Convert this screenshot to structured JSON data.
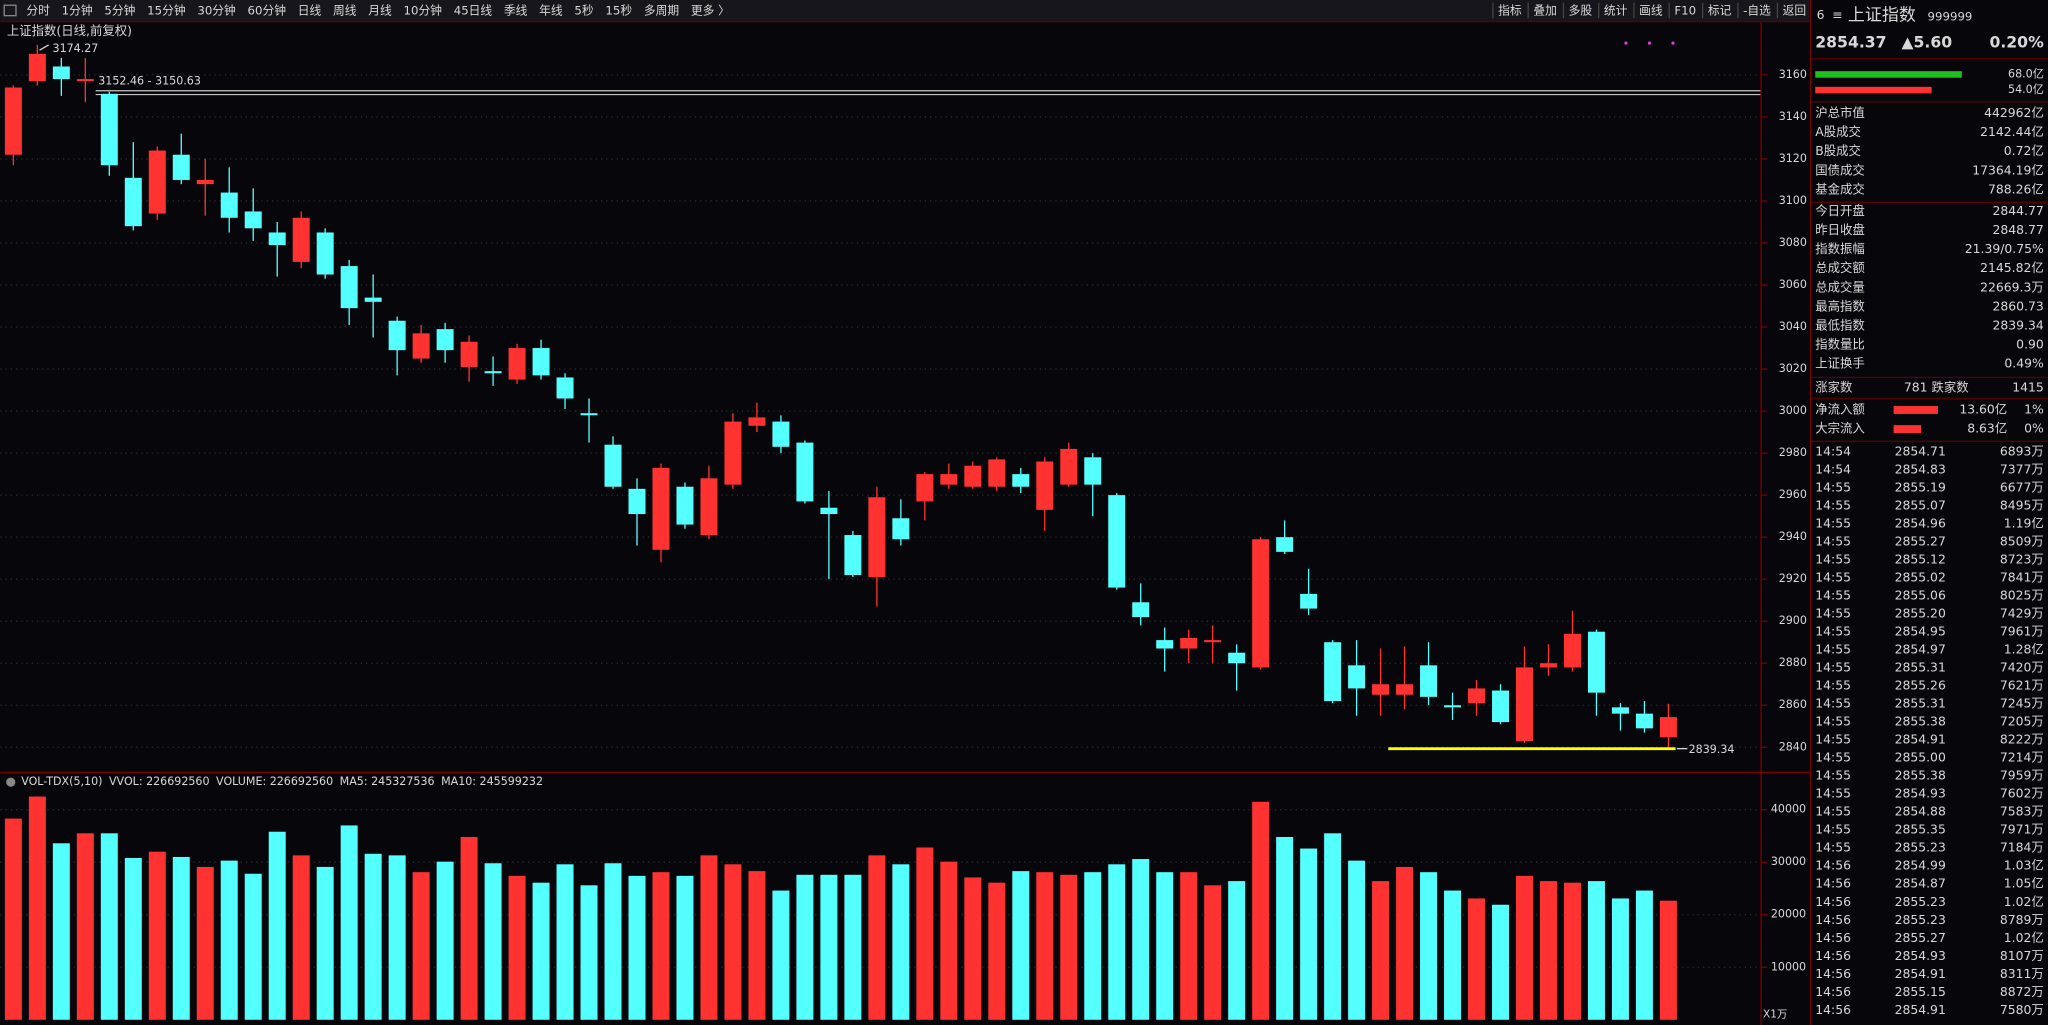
{
  "toolbar": {
    "periods": [
      "分时",
      "1分钟",
      "5分钟",
      "15分钟",
      "30分钟",
      "60分钟",
      "日线",
      "周线",
      "月线",
      "10分钟",
      "45日线",
      "季线",
      "年线",
      "5秒",
      "15秒",
      "多周期",
      "更多 〉"
    ],
    "active": 6,
    "tools": [
      "指标",
      "叠加",
      "多股",
      "统计",
      "画线",
      "F10",
      "标记",
      "-自选",
      "返回"
    ]
  },
  "kline": {
    "title": "上证指数(日线,前复权)",
    "up_color": "#ff3232",
    "down_color": "#54ffff",
    "ylim": [
      2829,
      3177
    ],
    "yticks": [
      2840,
      2860,
      2880,
      2900,
      2920,
      2940,
      2960,
      2980,
      3000,
      3020,
      3040,
      3060,
      3080,
      3100,
      3120,
      3140,
      3160
    ],
    "grid": true,
    "high_mark": 3174.27,
    "range_line": {
      "label": "3152.46 - 3150.63",
      "top": 3152.46,
      "bottom": 3150.63
    },
    "low_mark": 2839.34,
    "ohlc": [
      [
        3122,
        3155,
        3117,
        3154
      ],
      [
        3157,
        3174.27,
        3155,
        3170
      ],
      [
        3164,
        3168,
        3150,
        3158
      ],
      [
        3157,
        3168,
        3147,
        3158
      ],
      [
        3151,
        3152,
        3112,
        3117
      ],
      [
        3111,
        3128,
        3086,
        3088
      ],
      [
        3094,
        3126,
        3091,
        3124
      ],
      [
        3122,
        3132,
        3108,
        3110
      ],
      [
        3108,
        3120,
        3093,
        3110
      ],
      [
        3104,
        3116,
        3085,
        3092
      ],
      [
        3095,
        3106,
        3081,
        3087
      ],
      [
        3085,
        3090,
        3064,
        3079
      ],
      [
        3071,
        3095,
        3068,
        3092
      ],
      [
        3085,
        3087,
        3063,
        3065
      ],
      [
        3069,
        3072,
        3041,
        3049
      ],
      [
        3054,
        3065,
        3035,
        3052
      ],
      [
        3043,
        3045,
        3017,
        3029
      ],
      [
        3025,
        3041,
        3023,
        3037
      ],
      [
        3039,
        3042,
        3023,
        3029
      ],
      [
        3021,
        3036,
        3014,
        3033
      ],
      [
        3019,
        3026,
        3012,
        3018
      ],
      [
        3015,
        3032,
        3013,
        3030
      ],
      [
        3030,
        3034,
        3015,
        3017
      ],
      [
        3016,
        3018,
        3001,
        3006
      ],
      [
        2999,
        3006,
        2985,
        2998
      ],
      [
        2984,
        2988,
        2963,
        2964
      ],
      [
        2963,
        2968,
        2936,
        2951
      ],
      [
        2934,
        2975,
        2928,
        2973
      ],
      [
        2964,
        2966,
        2944,
        2946
      ],
      [
        2941,
        2974,
        2939,
        2968
      ],
      [
        2965,
        2999,
        2963,
        2995
      ],
      [
        2993,
        3004,
        2990,
        2997
      ],
      [
        2995,
        2998,
        2980,
        2983
      ],
      [
        2985,
        2986,
        2956,
        2957
      ],
      [
        2954,
        2962,
        2920,
        2951
      ],
      [
        2941,
        2943,
        2921,
        2922
      ],
      [
        2921,
        2964,
        2907,
        2959
      ],
      [
        2949,
        2958,
        2936,
        2939
      ],
      [
        2957,
        2971,
        2948,
        2970
      ],
      [
        2965,
        2975,
        2963,
        2970
      ],
      [
        2964,
        2976,
        2963,
        2974
      ],
      [
        2964,
        2978,
        2962,
        2977
      ],
      [
        2970,
        2973,
        2961,
        2964
      ],
      [
        2953,
        2978,
        2943,
        2976
      ],
      [
        2965,
        2985,
        2964,
        2982
      ],
      [
        2978,
        2980,
        2950,
        2965
      ],
      [
        2960,
        2961,
        2915,
        2916
      ],
      [
        2909,
        2918,
        2898,
        2902
      ],
      [
        2891,
        2897,
        2876,
        2887
      ],
      [
        2887,
        2896,
        2880,
        2892
      ],
      [
        2890,
        2898,
        2880,
        2891
      ],
      [
        2885,
        2889,
        2867,
        2880
      ],
      [
        2878,
        2940,
        2877,
        2939
      ],
      [
        2940,
        2948,
        2932,
        2933
      ],
      [
        2913,
        2925,
        2903,
        2906
      ],
      [
        2890,
        2891,
        2861,
        2862
      ],
      [
        2879,
        2891,
        2855,
        2868
      ],
      [
        2865,
        2887,
        2855,
        2870
      ],
      [
        2865,
        2888,
        2858,
        2870
      ],
      [
        2879,
        2890,
        2860,
        2864
      ],
      [
        2860,
        2866,
        2853,
        2859
      ],
      [
        2861,
        2872,
        2855,
        2868
      ],
      [
        2867,
        2870,
        2851,
        2852
      ],
      [
        2843,
        2888,
        2842,
        2878
      ],
      [
        2878,
        2889,
        2874,
        2880
      ],
      [
        2878,
        2905,
        2876,
        2894
      ],
      [
        2895,
        2896,
        2855,
        2866
      ],
      [
        2859,
        2861,
        2848,
        2856
      ],
      [
        2856,
        2862,
        2847,
        2849
      ],
      [
        2844.77,
        2860.73,
        2839.34,
        2854.37
      ]
    ]
  },
  "volume": {
    "legend": [
      "VOL-TDX(5,10)",
      "VVOL: 226692560",
      "VOLUME: 226692560",
      "MA5: 245327536",
      "MA10: 245599232"
    ],
    "legend_colors": [
      "#d8d8d8",
      "#d8d8d8",
      "#e8d000",
      "#e8d000",
      "#e040e0"
    ],
    "unit": "X1万",
    "ylim": [
      0,
      44000
    ],
    "yticks": [
      10000,
      20000,
      30000,
      40000
    ],
    "values": [
      38300,
      42500,
      33600,
      35500,
      35500,
      30800,
      32000,
      31000,
      29100,
      30300,
      27800,
      35800,
      31300,
      29100,
      37000,
      31600,
      31300,
      28100,
      30100,
      34800,
      29800,
      27400,
      26100,
      29600,
      25600,
      29800,
      27400,
      28100,
      27400,
      31300,
      29600,
      28300,
      24600,
      27600,
      27600,
      27600,
      31300,
      29600,
      32800,
      30100,
      27100,
      26100,
      28300,
      28100,
      27600,
      28100,
      29600,
      30600,
      28100,
      28100,
      25600,
      26400,
      41500,
      34800,
      32600,
      35500,
      30300,
      26400,
      29100,
      28100,
      24600,
      23100,
      21900,
      27400,
      26400,
      26100,
      26400,
      23100,
      24600,
      22669
    ]
  },
  "quote": {
    "num": "6",
    "menu": "≡",
    "name": "上证指数",
    "code": "999999",
    "price": "2854.37",
    "change": "▲5.60",
    "pct": "0.20%",
    "bars": [
      {
        "value": 68.0,
        "label": "68.0亿",
        "color": "#20c020"
      },
      {
        "value": 54.0,
        "label": "54.0亿",
        "color": "#ff3232"
      }
    ],
    "stats": [
      {
        "label": "沪总市值",
        "value": "442962亿",
        "color": "#e0e0e0"
      },
      {
        "label": "A股成交",
        "value": "2142.44亿",
        "color": "#e8d000"
      },
      {
        "label": "B股成交",
        "value": "0.72亿",
        "color": "#e8d000"
      },
      {
        "label": "国债成交",
        "value": "17364.19亿",
        "color": "#e8d000"
      },
      {
        "label": "基金成交",
        "value": "788.26亿",
        "color": "#e8d000"
      },
      {
        "label": "今日开盘",
        "value": "2844.77",
        "color": "#20e020"
      },
      {
        "label": "昨日收盘",
        "value": "2848.77",
        "color": "#e0e0e0"
      },
      {
        "label": "指数振幅",
        "value": "21.39/0.75%",
        "color": "#e0e0e0"
      },
      {
        "label": "总成交额",
        "value": "2145.82亿",
        "color": "#e8d000"
      },
      {
        "label": "总成交量",
        "value": "22669.3万",
        "color": "#e8d000"
      },
      {
        "label": "最高指数",
        "value": "2860.73",
        "color": "#ff3232"
      },
      {
        "label": "最低指数",
        "value": "2839.34",
        "color": "#20e020"
      },
      {
        "label": "指数量比",
        "value": "0.90",
        "color": "#20e020"
      },
      {
        "label": "上证换手",
        "value": "0.49%",
        "color": "#e0e0e0"
      }
    ],
    "breadth": {
      "up_label": "涨家数",
      "up": "781",
      "down_label": "跌家数",
      "down": "1415"
    },
    "flows": [
      {
        "label": "净流入额",
        "bar": 34,
        "value": "13.60亿",
        "pct": "1%"
      },
      {
        "label": "大宗流入",
        "bar": 21,
        "value": "8.63亿",
        "pct": "0%"
      }
    ],
    "ticks": [
      [
        "14:54",
        "2854.71",
        "6893万"
      ],
      [
        "14:54",
        "2854.83",
        "7377万"
      ],
      [
        "14:55",
        "2855.19",
        "6677万"
      ],
      [
        "14:55",
        "2855.07",
        "8495万"
      ],
      [
        "14:55",
        "2854.96",
        "1.19亿"
      ],
      [
        "14:55",
        "2855.27",
        "8509万"
      ],
      [
        "14:55",
        "2855.12",
        "8723万"
      ],
      [
        "14:55",
        "2855.02",
        "7841万"
      ],
      [
        "14:55",
        "2855.06",
        "8025万"
      ],
      [
        "14:55",
        "2855.20",
        "7429万"
      ],
      [
        "14:55",
        "2854.95",
        "7961万"
      ],
      [
        "14:55",
        "2854.97",
        "1.28亿"
      ],
      [
        "14:55",
        "2855.31",
        "7420万"
      ],
      [
        "14:55",
        "2855.26",
        "7621万"
      ],
      [
        "14:55",
        "2855.31",
        "7245万"
      ],
      [
        "14:55",
        "2855.38",
        "7205万"
      ],
      [
        "14:55",
        "2854.91",
        "8222万"
      ],
      [
        "14:55",
        "2855.00",
        "7214万"
      ],
      [
        "14:55",
        "2855.38",
        "7959万"
      ],
      [
        "14:55",
        "2854.93",
        "7602万"
      ],
      [
        "14:55",
        "2854.88",
        "7583万"
      ],
      [
        "14:55",
        "2855.35",
        "7971万"
      ],
      [
        "14:55",
        "2855.23",
        "7184万"
      ],
      [
        "14:56",
        "2854.99",
        "1.03亿"
      ],
      [
        "14:56",
        "2854.87",
        "1.05亿"
      ],
      [
        "14:56",
        "2855.23",
        "1.02亿"
      ],
      [
        "14:56",
        "2855.23",
        "8789万"
      ],
      [
        "14:56",
        "2855.27",
        "1.02亿"
      ],
      [
        "14:56",
        "2854.93",
        "8107万"
      ],
      [
        "14:56",
        "2854.91",
        "8311万"
      ],
      [
        "14:56",
        "2855.15",
        "8872万"
      ],
      [
        "14:56",
        "2854.91",
        "7580万"
      ]
    ]
  }
}
